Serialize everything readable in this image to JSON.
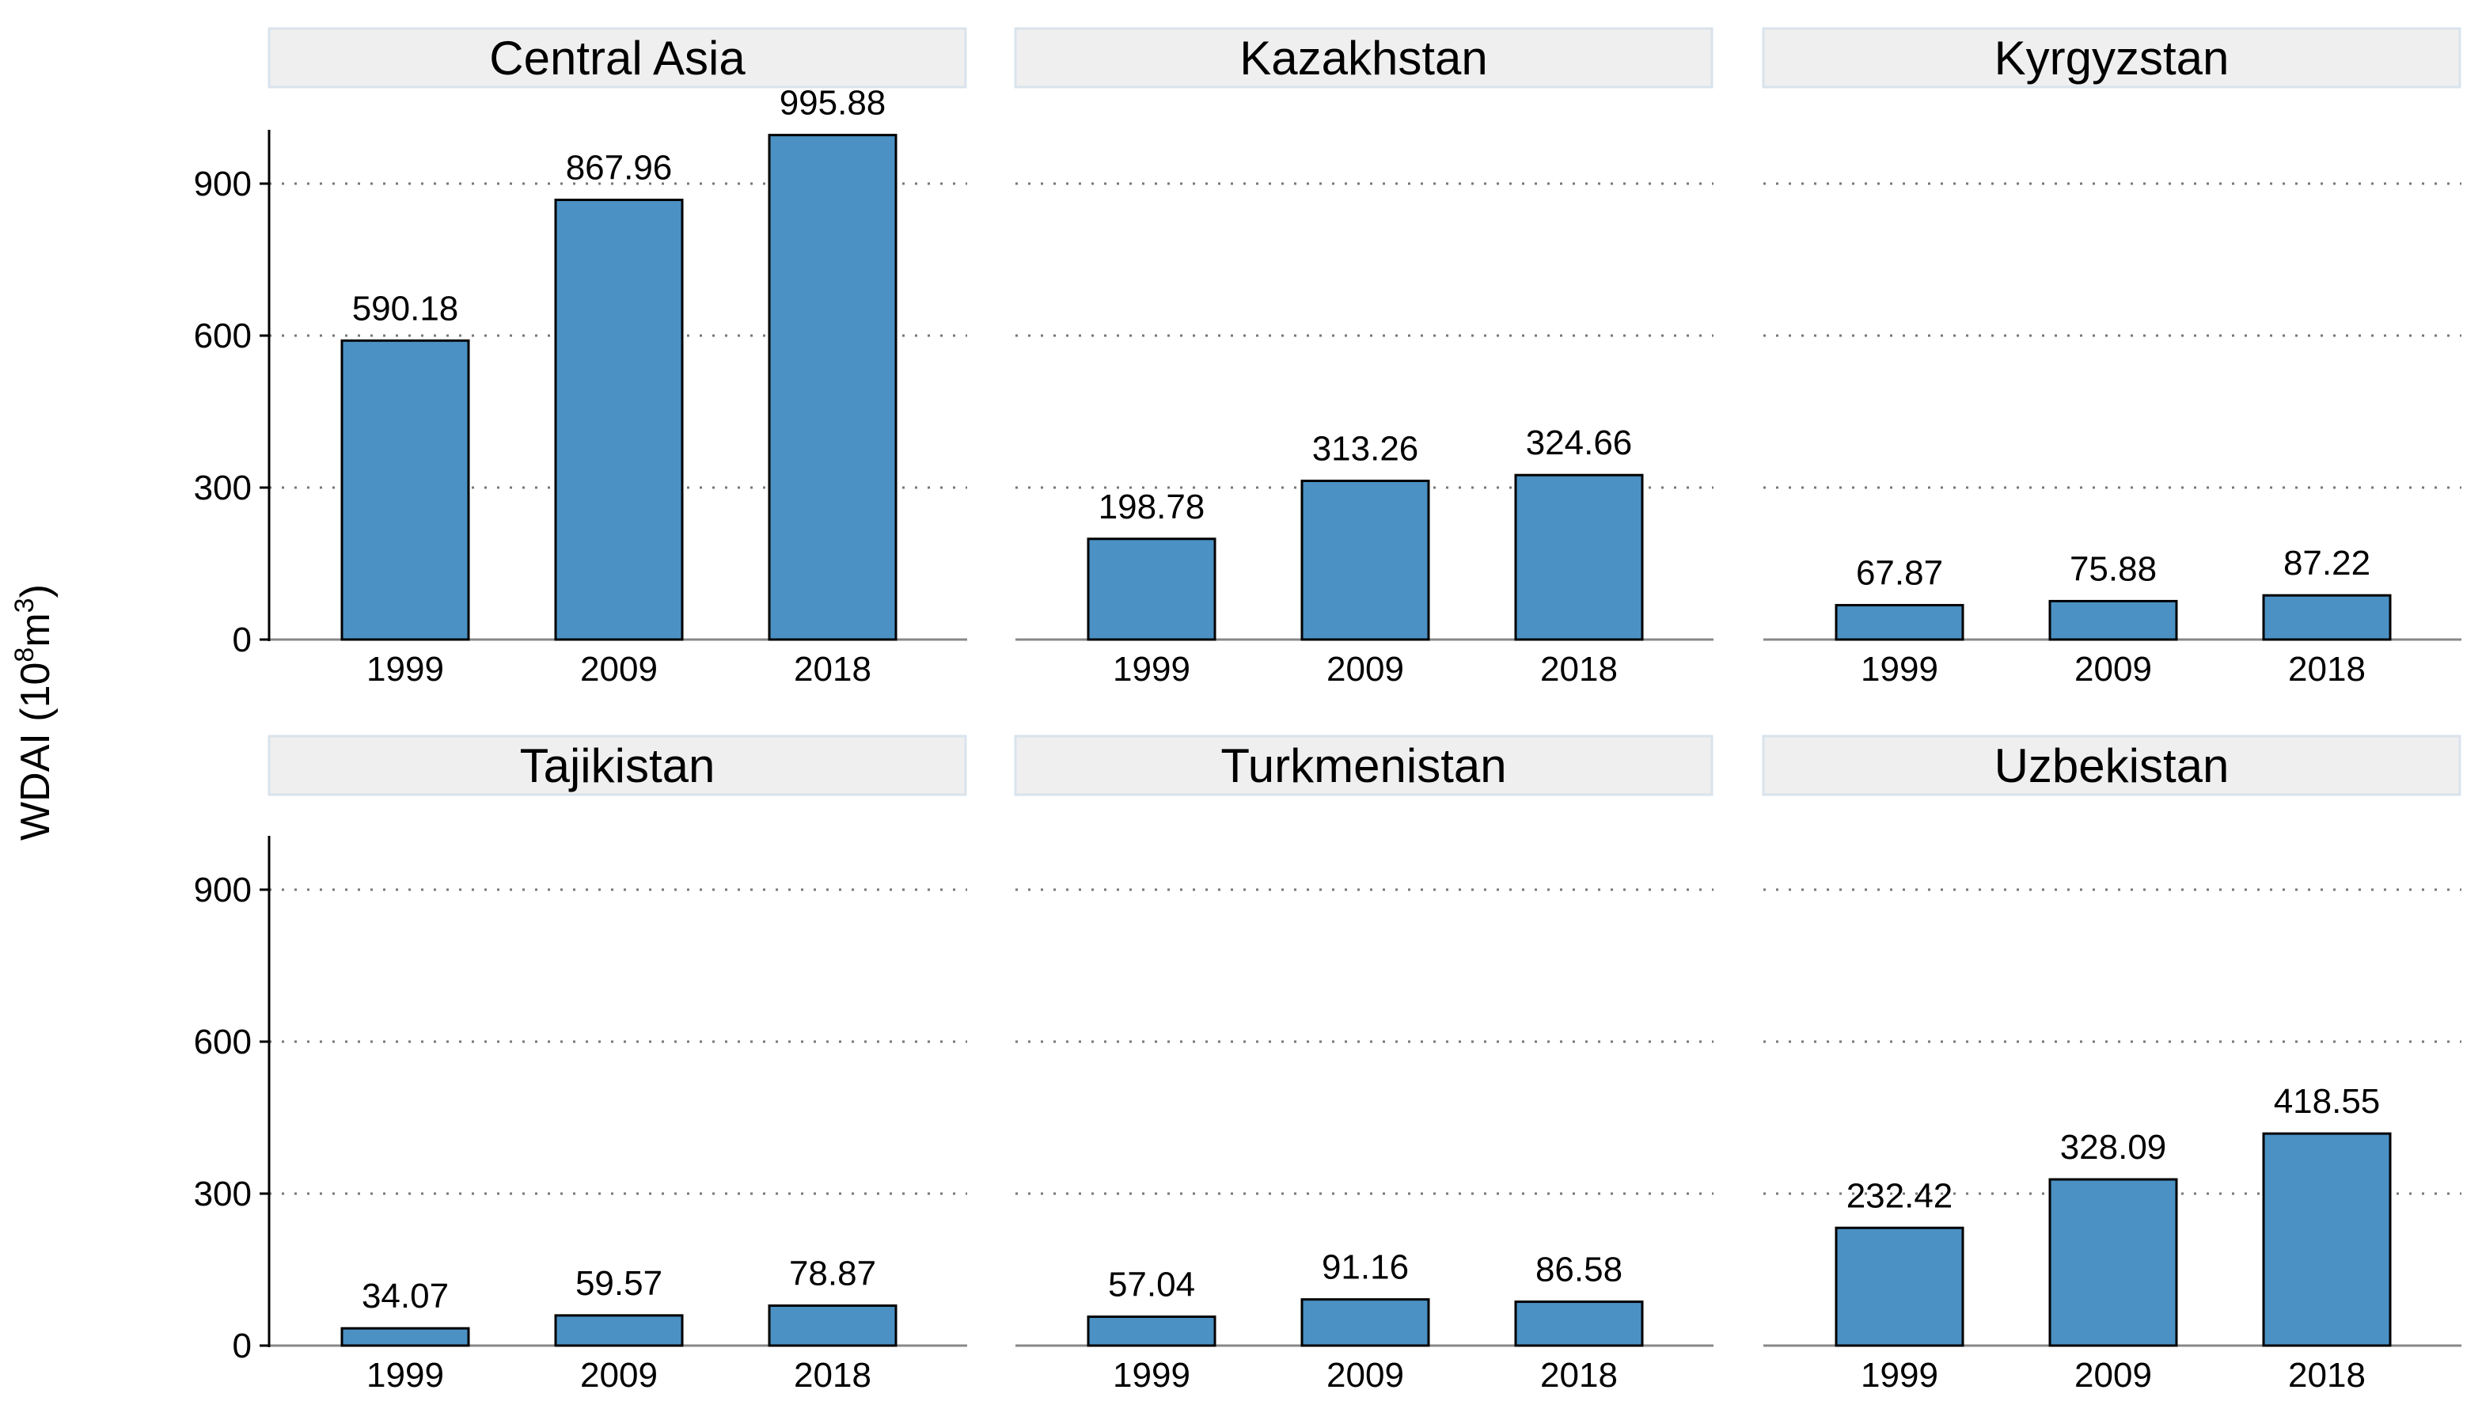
{
  "chart_data": {
    "type": "bar",
    "ylabel": "WDAI (10",
    "ylabel_sup1": "8",
    "ylabel_mid": "m",
    "ylabel_sup2": "3",
    "ylabel_end": ")",
    "categories": [
      "1999",
      "2009",
      "2018"
    ],
    "ylim": [
      0,
      1000
    ],
    "yticks": [
      0,
      300,
      600,
      900
    ],
    "grid": true,
    "bar_color": "#4b91c3",
    "panels": [
      {
        "title": "Central Asia",
        "values": [
          590.18,
          867.96,
          995.88
        ],
        "labels": [
          "590.18",
          "867.96",
          "995.88"
        ]
      },
      {
        "title": "Kazakhstan",
        "values": [
          198.78,
          313.26,
          324.66
        ],
        "labels": [
          "198.78",
          "313.26",
          "324.66"
        ]
      },
      {
        "title": "Kyrgyzstan",
        "values": [
          67.87,
          75.88,
          87.22
        ],
        "labels": [
          "67.87",
          "75.88",
          "87.22"
        ]
      },
      {
        "title": "Tajikistan",
        "values": [
          34.07,
          59.57,
          78.87
        ],
        "labels": [
          "34.07",
          "59.57",
          "78.87"
        ]
      },
      {
        "title": "Turkmenistan",
        "values": [
          57.04,
          91.16,
          86.58
        ],
        "labels": [
          "57.04",
          "91.16",
          "86.58"
        ]
      },
      {
        "title": "Uzbekistan",
        "values": [
          232.42,
          328.09,
          418.55
        ],
        "labels": [
          "232.42",
          "328.09",
          "418.55"
        ]
      }
    ]
  }
}
